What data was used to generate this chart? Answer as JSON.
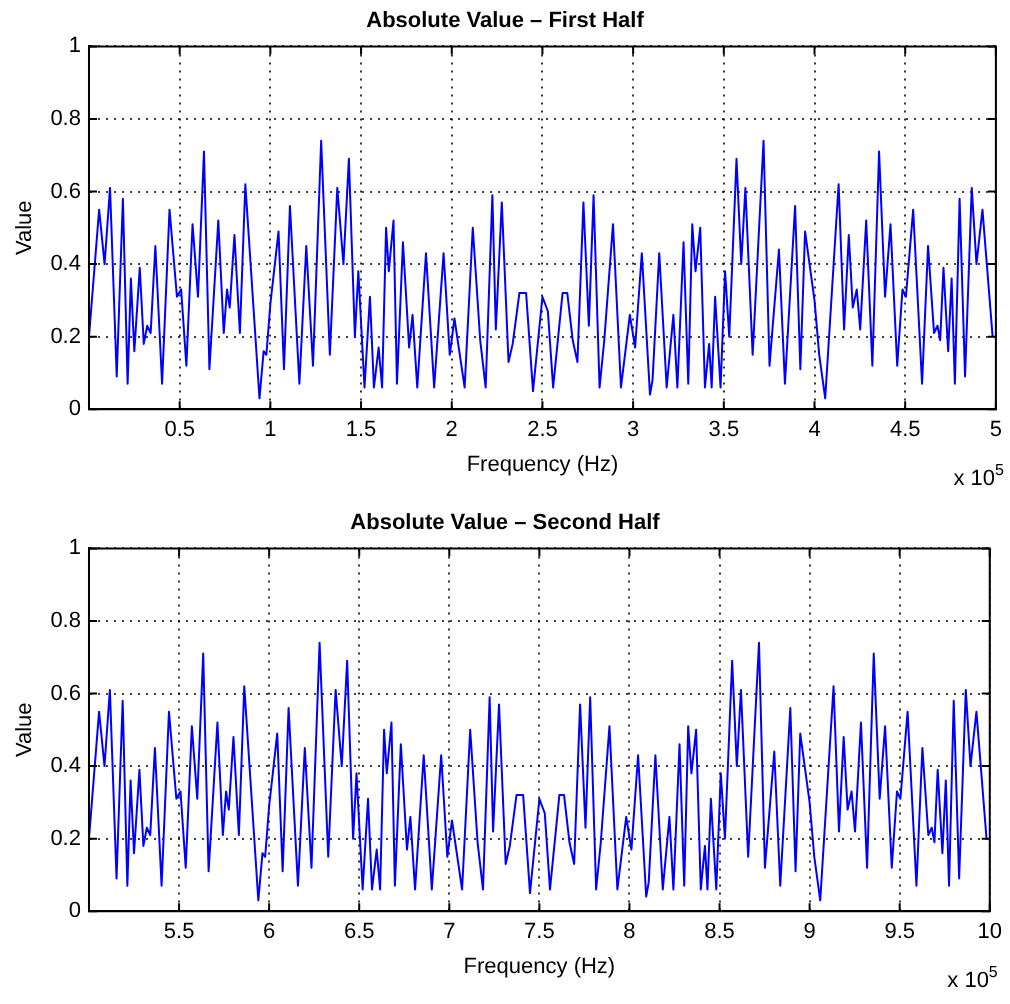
{
  "chart_data": [
    {
      "type": "line",
      "title": "Absolute Value – First Half",
      "xlabel": "Frequency (Hz)",
      "ylabel": "Value",
      "color": "#0000ff",
      "grid": true,
      "xlim": [
        0,
        5
      ],
      "ylim": [
        0,
        1
      ],
      "yticks": [
        0,
        0.2,
        0.4,
        0.6,
        0.8,
        1
      ],
      "xticks": [
        0.5,
        1,
        1.5,
        2,
        2.5,
        3,
        3.5,
        4,
        4.5,
        5
      ],
      "annotations": [
        "x 10$^{5}$"
      ],
      "x": [
        0,
        0.056,
        0.086,
        0.116,
        0.153,
        0.187,
        0.213,
        0.231,
        0.25,
        0.28,
        0.302,
        0.321,
        0.34,
        0.366,
        0.403,
        0.444,
        0.485,
        0.508,
        0.537,
        0.571,
        0.601,
        0.634,
        0.664,
        0.713,
        0.743,
        0.761,
        0.776,
        0.802,
        0.832,
        0.862,
        0.94,
        0.963,
        0.978,
        1,
        1.045,
        1.075,
        1.108,
        1.16,
        1.198,
        1.235,
        1.28,
        1.328,
        1.369,
        1.403,
        1.433,
        1.466,
        1.485,
        1.519,
        1.549,
        1.571,
        1.597,
        1.616,
        1.638,
        1.653,
        1.679,
        1.698,
        1.731,
        1.765,
        1.784,
        1.81,
        1.858,
        1.903,
        1.955,
        1.989,
        2.015,
        2.071,
        2.116,
        2.157,
        2.187,
        2.224,
        2.243,
        2.276,
        2.313,
        2.336,
        2.373,
        2.41,
        2.448,
        2.5,
        2.53,
        2.559,
        2.611,
        2.637,
        2.667,
        2.693,
        2.726,
        2.756,
        2.782,
        2.815,
        2.841,
        2.889,
        2.933,
        2.982,
        3.011,
        3.048,
        3.093,
        3.107,
        3.144,
        3.185,
        3.222,
        3.244,
        3.278,
        3.304,
        3.326,
        3.344,
        3.37,
        3.396,
        3.419,
        3.433,
        3.452,
        3.482,
        3.507,
        3.53,
        3.57,
        3.596,
        3.619,
        3.659,
        3.719,
        3.752,
        3.804,
        3.837,
        3.893,
        3.922,
        3.948,
        4,
        4.026,
        4.059,
        4.133,
        4.163,
        4.189,
        4.211,
        4.233,
        4.252,
        4.285,
        4.319,
        4.356,
        4.389,
        4.419,
        4.456,
        4.485,
        4.504,
        4.544,
        4.593,
        4.626,
        4.659,
        4.678,
        4.693,
        4.711,
        4.737,
        4.756,
        4.774,
        4.8,
        4.83,
        4.867,
        4.893,
        4.926,
        4.982
      ],
      "values": [
        0.2,
        0.55,
        0.4,
        0.61,
        0.09,
        0.58,
        0.07,
        0.36,
        0.16,
        0.39,
        0.18,
        0.23,
        0.21,
        0.45,
        0.07,
        0.55,
        0.31,
        0.33,
        0.12,
        0.51,
        0.31,
        0.71,
        0.11,
        0.52,
        0.21,
        0.33,
        0.28,
        0.48,
        0.21,
        0.62,
        0.03,
        0.16,
        0.15,
        0.29,
        0.49,
        0.11,
        0.56,
        0.07,
        0.45,
        0.12,
        0.74,
        0.15,
        0.61,
        0.4,
        0.69,
        0.2,
        0.38,
        0.06,
        0.31,
        0.06,
        0.17,
        0.06,
        0.5,
        0.38,
        0.52,
        0.07,
        0.46,
        0.17,
        0.26,
        0.06,
        0.43,
        0.06,
        0.43,
        0.15,
        0.25,
        0.06,
        0.5,
        0.19,
        0.06,
        0.59,
        0.22,
        0.57,
        0.13,
        0.18,
        0.32,
        0.32,
        0.05,
        0.31,
        0.27,
        0.06,
        0.32,
        0.32,
        0.19,
        0.13,
        0.57,
        0.23,
        0.59,
        0.06,
        0.19,
        0.51,
        0.06,
        0.26,
        0.17,
        0.43,
        0.04,
        0.08,
        0.43,
        0.06,
        0.26,
        0.06,
        0.46,
        0.07,
        0.51,
        0.38,
        0.5,
        0.06,
        0.18,
        0.06,
        0.31,
        0.06,
        0.38,
        0.2,
        0.69,
        0.4,
        0.61,
        0.15,
        0.74,
        0.12,
        0.44,
        0.07,
        0.56,
        0.11,
        0.49,
        0.3,
        0.15,
        0.03,
        0.62,
        0.22,
        0.48,
        0.28,
        0.33,
        0.22,
        0.52,
        0.12,
        0.71,
        0.31,
        0.51,
        0.12,
        0.33,
        0.31,
        0.55,
        0.07,
        0.45,
        0.21,
        0.23,
        0.19,
        0.39,
        0.16,
        0.36,
        0.07,
        0.58,
        0.09,
        0.61,
        0.4,
        0.55,
        0.2
      ]
    },
    {
      "type": "line",
      "title": "Absolute Value – Second Half",
      "xlabel": "Frequency (Hz)",
      "ylabel": "Value",
      "color": "#0000ff",
      "grid": true,
      "xlim": [
        5,
        10
      ],
      "ylim": [
        0,
        1
      ],
      "yticks": [
        0,
        0.2,
        0.4,
        0.6,
        0.8,
        1
      ],
      "xticks": [
        5.5,
        6,
        6.5,
        7,
        7.5,
        8,
        8.5,
        9,
        9.5,
        10
      ],
      "annotations": [
        "x 10$^{5}$"
      ],
      "x": [
        5,
        5.056,
        5.086,
        5.116,
        5.153,
        5.187,
        5.213,
        5.231,
        5.25,
        5.28,
        5.302,
        5.321,
        5.34,
        5.366,
        5.403,
        5.444,
        5.485,
        5.508,
        5.537,
        5.571,
        5.601,
        5.634,
        5.664,
        5.713,
        5.743,
        5.761,
        5.776,
        5.802,
        5.832,
        5.862,
        5.94,
        5.963,
        5.978,
        6,
        6.045,
        6.075,
        6.108,
        6.16,
        6.198,
        6.235,
        6.28,
        6.328,
        6.369,
        6.403,
        6.433,
        6.466,
        6.485,
        6.519,
        6.549,
        6.571,
        6.597,
        6.616,
        6.638,
        6.653,
        6.679,
        6.698,
        6.731,
        6.765,
        6.784,
        6.81,
        6.858,
        6.903,
        6.955,
        6.989,
        7.015,
        7.071,
        7.116,
        7.157,
        7.187,
        7.224,
        7.243,
        7.276,
        7.313,
        7.336,
        7.373,
        7.41,
        7.448,
        7.5,
        7.53,
        7.559,
        7.611,
        7.637,
        7.667,
        7.693,
        7.726,
        7.756,
        7.782,
        7.815,
        7.841,
        7.889,
        7.933,
        7.982,
        8.011,
        8.048,
        8.093,
        8.107,
        8.144,
        8.185,
        8.222,
        8.244,
        8.278,
        8.304,
        8.326,
        8.344,
        8.37,
        8.396,
        8.419,
        8.433,
        8.452,
        8.482,
        8.507,
        8.53,
        8.57,
        8.596,
        8.619,
        8.659,
        8.719,
        8.752,
        8.804,
        8.837,
        8.893,
        8.922,
        8.948,
        9,
        9.026,
        9.059,
        9.133,
        9.163,
        9.189,
        9.211,
        9.233,
        9.252,
        9.285,
        9.319,
        9.356,
        9.389,
        9.419,
        9.456,
        9.485,
        9.504,
        9.544,
        9.593,
        9.626,
        9.659,
        9.678,
        9.693,
        9.711,
        9.737,
        9.756,
        9.774,
        9.8,
        9.83,
        9.867,
        9.893,
        9.926,
        9.982
      ],
      "values": [
        0.2,
        0.55,
        0.4,
        0.61,
        0.09,
        0.58,
        0.07,
        0.36,
        0.16,
        0.39,
        0.18,
        0.23,
        0.21,
        0.45,
        0.07,
        0.55,
        0.31,
        0.33,
        0.12,
        0.51,
        0.31,
        0.71,
        0.11,
        0.52,
        0.21,
        0.33,
        0.28,
        0.48,
        0.21,
        0.62,
        0.03,
        0.16,
        0.15,
        0.29,
        0.49,
        0.11,
        0.56,
        0.07,
        0.45,
        0.12,
        0.74,
        0.15,
        0.61,
        0.4,
        0.69,
        0.2,
        0.38,
        0.06,
        0.31,
        0.06,
        0.17,
        0.06,
        0.5,
        0.38,
        0.52,
        0.07,
        0.46,
        0.17,
        0.26,
        0.06,
        0.43,
        0.06,
        0.43,
        0.15,
        0.25,
        0.06,
        0.5,
        0.19,
        0.06,
        0.59,
        0.22,
        0.57,
        0.13,
        0.18,
        0.32,
        0.32,
        0.05,
        0.31,
        0.27,
        0.06,
        0.32,
        0.32,
        0.19,
        0.13,
        0.57,
        0.23,
        0.59,
        0.06,
        0.19,
        0.51,
        0.06,
        0.26,
        0.17,
        0.43,
        0.04,
        0.08,
        0.43,
        0.06,
        0.26,
        0.06,
        0.46,
        0.07,
        0.51,
        0.38,
        0.5,
        0.06,
        0.18,
        0.06,
        0.31,
        0.06,
        0.38,
        0.2,
        0.69,
        0.4,
        0.61,
        0.15,
        0.74,
        0.12,
        0.44,
        0.07,
        0.56,
        0.11,
        0.49,
        0.3,
        0.15,
        0.03,
        0.62,
        0.22,
        0.48,
        0.28,
        0.33,
        0.22,
        0.52,
        0.12,
        0.71,
        0.31,
        0.51,
        0.12,
        0.33,
        0.31,
        0.55,
        0.07,
        0.45,
        0.21,
        0.23,
        0.19,
        0.39,
        0.16,
        0.36,
        0.07,
        0.58,
        0.09,
        0.61,
        0.4,
        0.55,
        0.2
      ]
    }
  ]
}
